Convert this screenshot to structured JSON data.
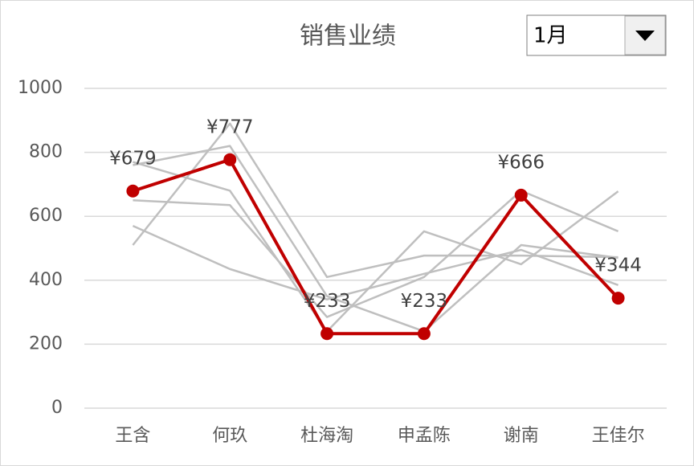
{
  "chart_data": {
    "type": "line",
    "title": "销售业绩",
    "categories": [
      "王含",
      "何玖",
      "杜海淘",
      "申孟陈",
      "谢南",
      "王佳尔"
    ],
    "ylim": [
      0,
      1000
    ],
    "yticks": [
      0,
      200,
      400,
      600,
      800,
      1000
    ],
    "grid": true,
    "series": [
      {
        "name": "1月",
        "color": "#c00000",
        "values": [
          679,
          777,
          233,
          233,
          666,
          344
        ],
        "value_labels": [
          "¥679",
          "¥777",
          "¥233",
          "¥233",
          "¥666",
          "¥344"
        ]
      },
      {
        "color": "#bfbfbf",
        "values": [
          510,
          890,
          410,
          477,
          477,
          472
        ]
      },
      {
        "color": "#bfbfbf",
        "values": [
          770,
          680,
          240,
          553,
          450,
          678
        ]
      },
      {
        "color": "#bfbfbf",
        "values": [
          760,
          820,
          350,
          240,
          510,
          470
        ]
      },
      {
        "color": "#bfbfbf",
        "values": [
          570,
          435,
          340,
          420,
          495,
          385
        ]
      },
      {
        "color": "#bfbfbf",
        "values": [
          650,
          635,
          285,
          410,
          680,
          553
        ]
      }
    ]
  }
}
